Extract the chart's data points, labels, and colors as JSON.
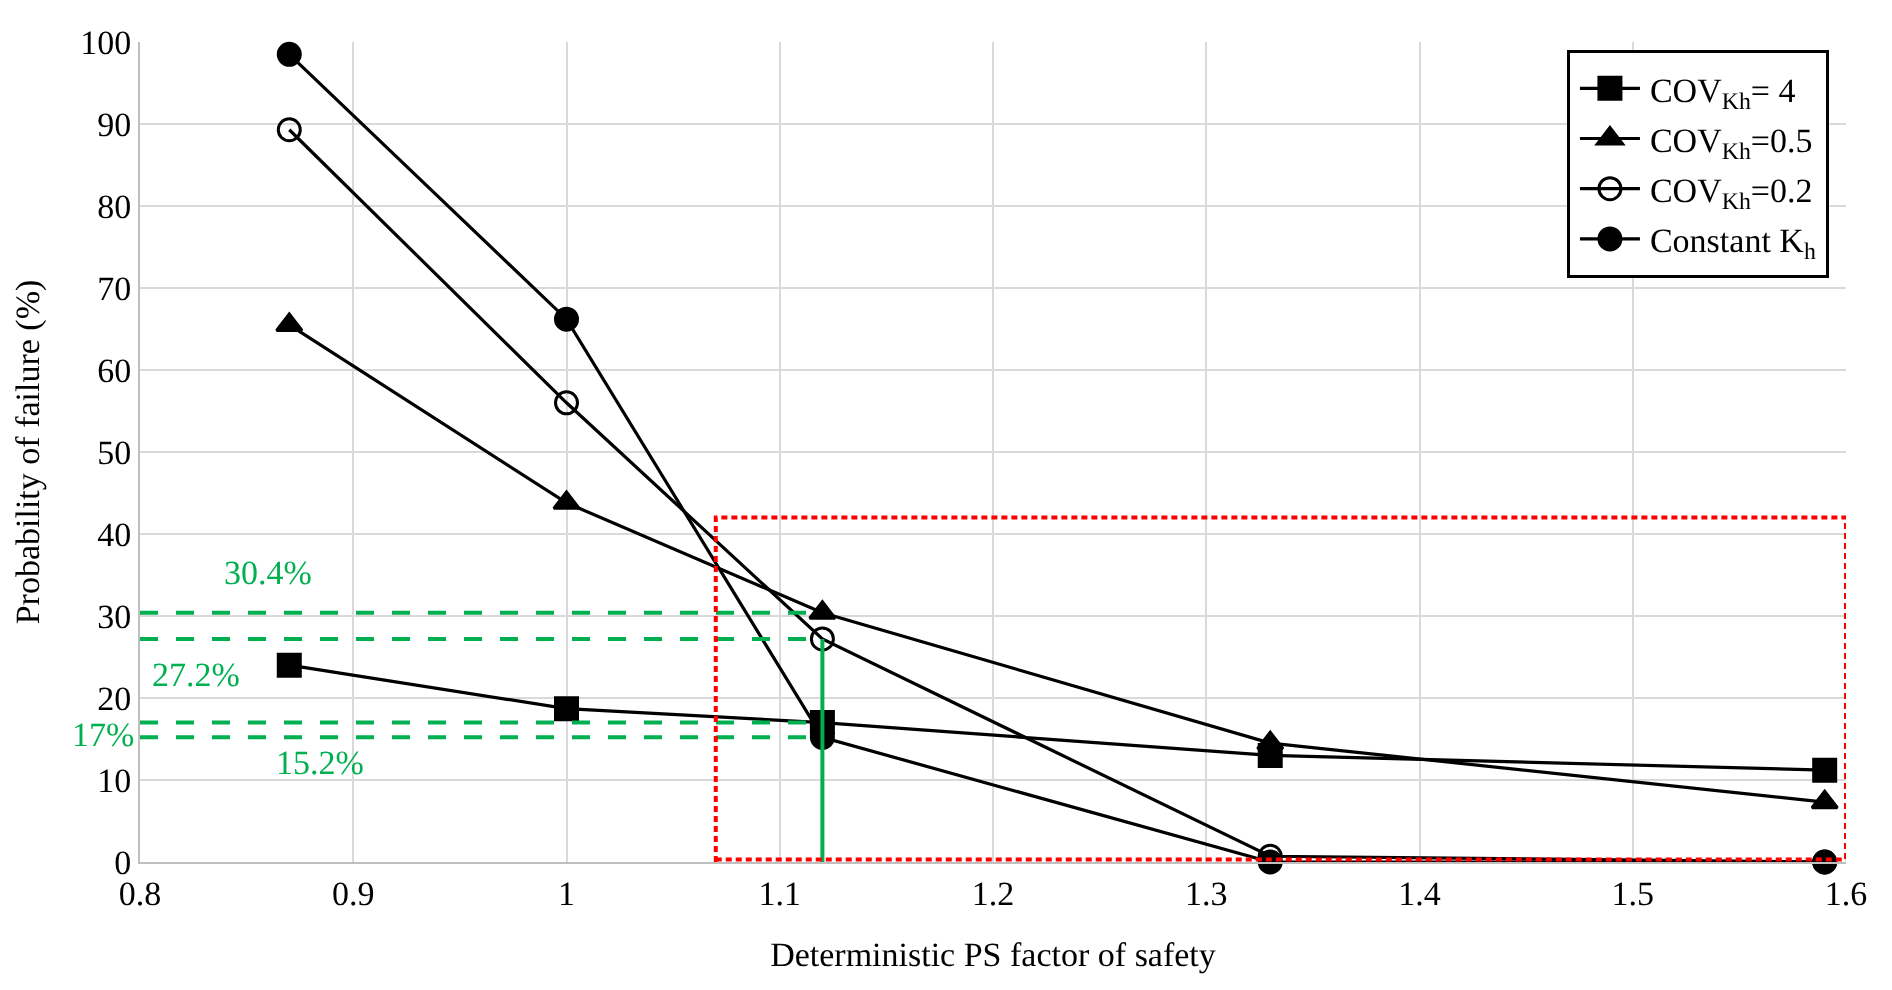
{
  "chart_data": {
    "type": "line",
    "xlabel": "Deterministic PS factor of safety",
    "ylabel": "Probability of failure (%)",
    "x": [
      0.87,
      1.0,
      1.12,
      1.33,
      1.59
    ],
    "series": [
      {
        "name": "COV$_{Kh}$= 4",
        "color": "#000000",
        "marker": "square",
        "values": [
          24,
          18.7,
          17,
          13,
          11.2
        ]
      },
      {
        "name": "COV$_{Kh}$=0.5",
        "color": "#000000",
        "marker": "triangle",
        "values": [
          65.5,
          43.8,
          30.4,
          14.5,
          7.3
        ]
      },
      {
        "name": "COV$_{Kh}$=0.2",
        "color": "#000000",
        "marker": "circle-open",
        "values": [
          89.3,
          56,
          27.2,
          0.7,
          0
        ]
      },
      {
        "name": "Constant K$_{h}$",
        "color": "#000000",
        "marker": "circle",
        "values": [
          98.5,
          66.2,
          15.2,
          0,
          0
        ]
      },
      {
        "type": "line",
        "color": "#00b050",
        "line_style": "dashed",
        "marker": "none",
        "x": [
          0.8,
          1.12
        ],
        "values": [
          30.4,
          30.4
        ]
      },
      {
        "type": "line",
        "color": "#00b050",
        "line_style": "dashed",
        "marker": "none",
        "x": [
          0.8,
          1.12
        ],
        "values": [
          27.2,
          27.2
        ]
      },
      {
        "type": "line",
        "color": "#00b050",
        "line_style": "dashed",
        "marker": "none",
        "x": [
          0.8,
          1.12
        ],
        "values": [
          17,
          17
        ]
      },
      {
        "type": "line",
        "color": "#00b050",
        "line_style": "dashed",
        "marker": "none",
        "x": [
          0.8,
          1.12
        ],
        "values": [
          15.2,
          15.2
        ]
      },
      {
        "type": "line",
        "color": "#00b050",
        "line_style": "solid",
        "marker": "none",
        "x": [
          1.12,
          1.12
        ],
        "values": [
          0,
          27.2
        ]
      },
      {
        "type": "line",
        "color": "#ff0000",
        "line_style": "dotted",
        "marker": "none",
        "x": [
          1.07,
          1.07,
          1.6,
          1.6
        ],
        "values": [
          0,
          42,
          42,
          0
        ]
      },
      {
        "type": "line",
        "color": "#ff0000",
        "line_style": "dotted",
        "marker": "none",
        "x": [
          1.07,
          1.6
        ],
        "values": [
          0.3,
          0.3
        ]
      }
    ],
    "annotations": [
      {
        "text": "30.4%",
        "x": 0.86,
        "y": 30.4
      },
      {
        "text": "27.2%",
        "x": 0.826,
        "y": 27.2
      },
      {
        "text": "17%",
        "x": 0.8,
        "y": 17
      },
      {
        "text": "15.2%",
        "x": 0.884,
        "y": 15.2
      }
    ],
    "xlim": [
      0.8,
      1.6
    ],
    "xticks": [
      0.8,
      0.9,
      1,
      1.1,
      1.2,
      1.3,
      1.4,
      1.5,
      1.6
    ],
    "ylim": [
      0,
      100
    ],
    "yticks": [
      0,
      10,
      20,
      30,
      40,
      50,
      60,
      70,
      80,
      90,
      100
    ],
    "grid": true,
    "legend": "top right"
  }
}
